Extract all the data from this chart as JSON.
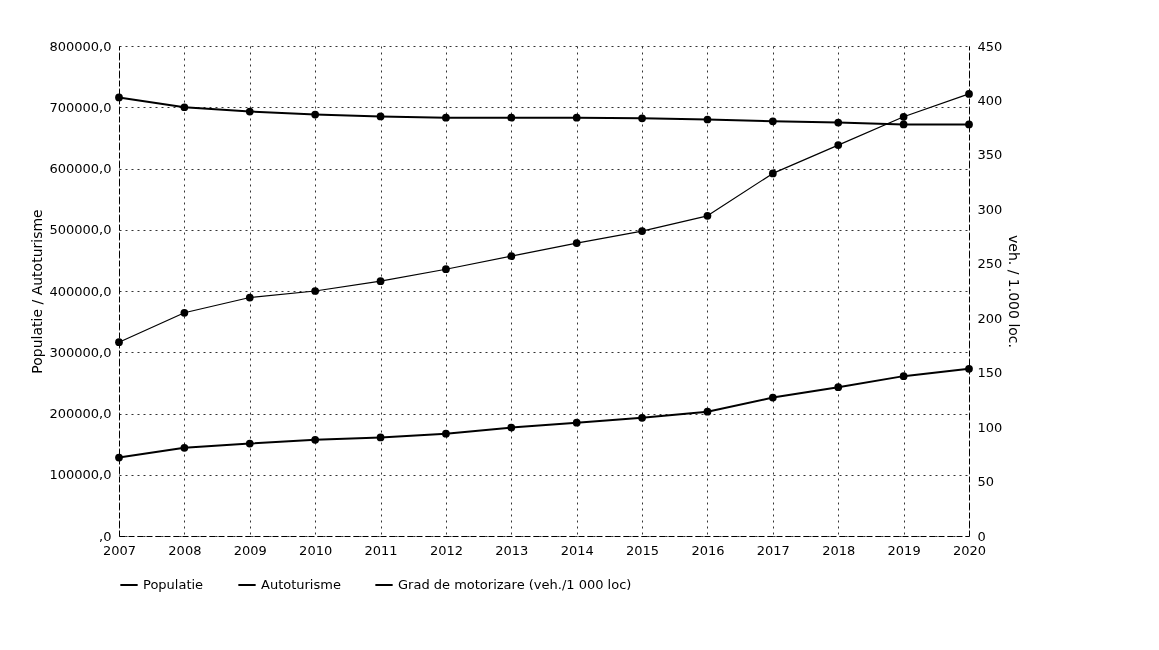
{
  "chart_data": {
    "type": "line",
    "categories": [
      "2007",
      "2008",
      "2009",
      "2010",
      "2011",
      "2012",
      "2013",
      "2014",
      "2015",
      "2016",
      "2017",
      "2018",
      "2019",
      "2020"
    ],
    "series": [
      {
        "name": "Populatie",
        "color": "#000000",
        "values": [
          716000,
          700000,
          693000,
          688000,
          685000,
          683000,
          683000,
          683000,
          682000,
          680000,
          677000,
          675000,
          672000,
          672000
        ]
      },
      {
        "name": "Autoturisme",
        "color": "#000000",
        "values": [
          128000,
          144000,
          151000,
          157000,
          161000,
          167000,
          177000,
          185000,
          193000,
          203000,
          226000,
          243000,
          261000,
          273000
        ]
      },
      {
        "name": "Grad de motorizare (veh./1 000 loc)",
        "color": "#000000",
        "axis": "y2",
        "values": [
          178,
          205,
          219,
          225,
          234,
          245,
          257,
          269,
          280,
          294,
          333,
          359,
          385,
          406
        ]
      }
    ],
    "ylabel": "Populatie / Autoturisme",
    "y2label": "veh. / 1.000 loc.",
    "ylim": [
      0,
      800000
    ],
    "yticks": [
      {
        "value": 0,
        "label": ",0"
      },
      {
        "value": 100000,
        "label": "100000,0"
      },
      {
        "value": 200000,
        "label": "200000,0"
      },
      {
        "value": 300000,
        "label": "300000,0"
      },
      {
        "value": 400000,
        "label": "400000,0"
      },
      {
        "value": 500000,
        "label": "500000,0"
      },
      {
        "value": 600000,
        "label": "600000,0"
      },
      {
        "value": 700000,
        "label": "700000,0"
      },
      {
        "value": 800000,
        "label": "800000,0"
      }
    ],
    "y2lim": [
      0,
      450
    ],
    "y2ticks": [
      0,
      50,
      100,
      150,
      200,
      250,
      300,
      350,
      400,
      450
    ],
    "grid": true,
    "legend": "bottom",
    "marker": "circle",
    "line_style": "solid"
  }
}
